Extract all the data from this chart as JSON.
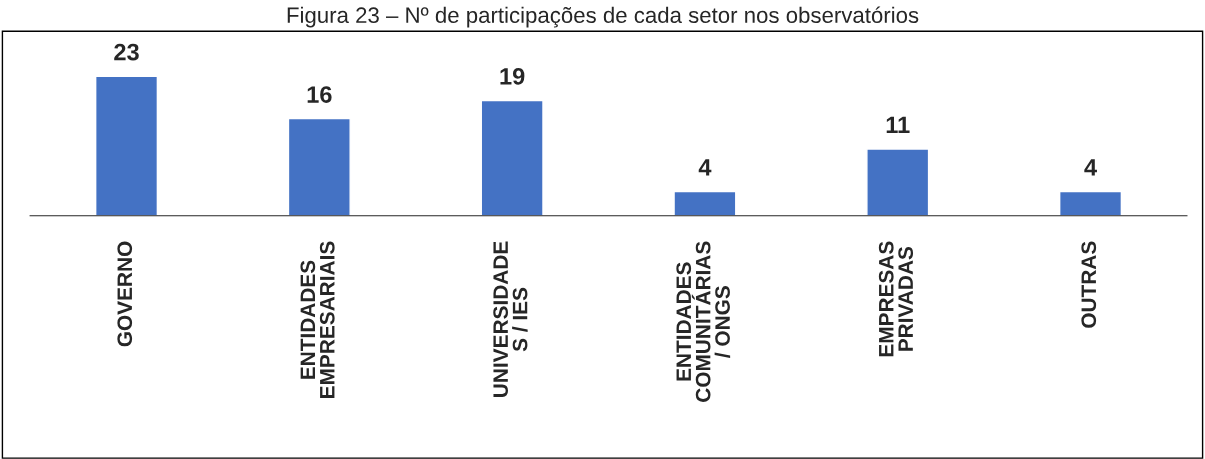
{
  "chart_data": {
    "type": "bar",
    "title": "Figura 23 – Nº de participações de cada setor nos observatórios",
    "categories": [
      "GOVERNO",
      "ENTIDADES\nEMPRESARIAIS",
      "UNIVERSIDADE\nS / IES",
      "ENTIDADES\nCOMUNITÁRIAS\n/ ONGS",
      "EMPRESAS\nPRIVADAS",
      "OUTRAS"
    ],
    "values": [
      23,
      16,
      19,
      4,
      11,
      4
    ],
    "color": "#4472c4",
    "data_labels": true,
    "grid": false,
    "legend": false
  }
}
